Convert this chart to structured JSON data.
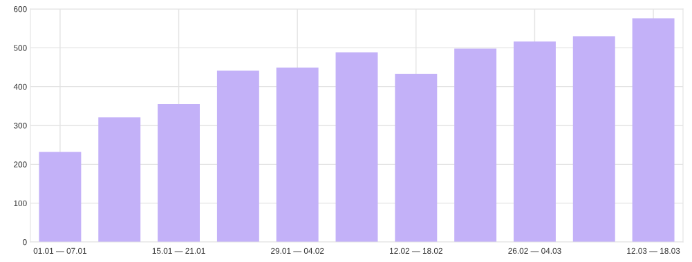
{
  "chart_data": {
    "type": "bar",
    "categories": [
      "01.01 — 07.01",
      null,
      "15.01 — 21.01",
      null,
      "29.01 — 04.02",
      null,
      "12.02 — 18.02",
      null,
      "26.02 — 04.03",
      null,
      "12.03 — 18.03"
    ],
    "values": [
      232,
      321,
      355,
      441,
      449,
      488,
      433,
      498,
      516,
      530,
      576
    ],
    "color": "#c3b1f8",
    "ylim": [
      0,
      600
    ],
    "yticks": [
      0,
      100,
      200,
      300,
      400,
      500,
      600
    ],
    "grid": true
  }
}
